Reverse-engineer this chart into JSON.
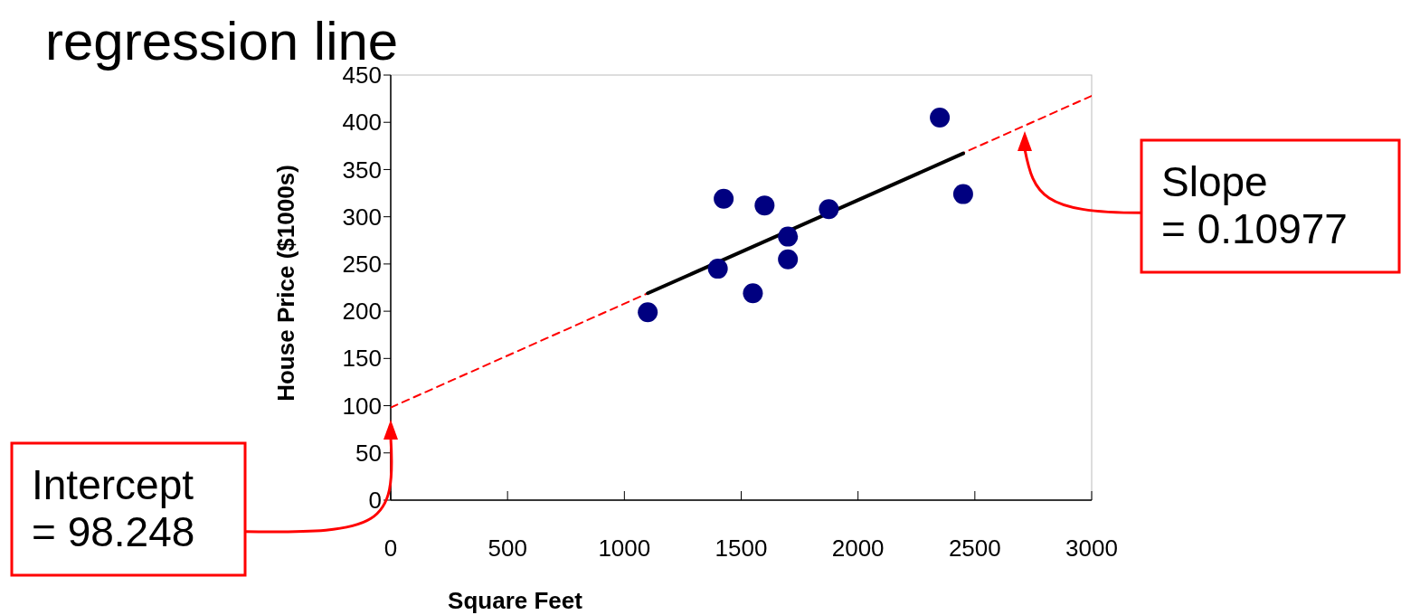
{
  "chart_data": {
    "type": "scatter",
    "title": "regression line",
    "xlabel": "Square Feet",
    "ylabel": "House Price ($1000s)",
    "xlim": [
      0,
      3000
    ],
    "xticks": [
      0,
      500,
      1000,
      1500,
      2000,
      2500,
      3000
    ],
    "ylim": [
      0,
      450
    ],
    "yticks": [
      0,
      50,
      100,
      150,
      200,
      250,
      300,
      350,
      400,
      450
    ],
    "marker": "circle",
    "series": [
      {
        "type": "line",
        "color": "#ff0000",
        "line_style": "dashed",
        "marker": "none",
        "x": [
          0,
          3000
        ],
        "values": [
          98,
          428
        ]
      },
      {
        "type": "line",
        "color": "#000000",
        "line_style": "solid",
        "marker": "none",
        "x": [
          1100,
          2450
        ],
        "values": [
          219,
          367
        ]
      },
      {
        "color": "#000080",
        "x": [
          1400,
          1600,
          1700,
          1875,
          1100,
          1550,
          2350,
          2450,
          1425,
          1700
        ],
        "values": [
          245,
          312,
          279,
          308,
          199,
          219,
          405,
          324,
          319,
          255
        ]
      }
    ],
    "annotations": [
      "Intercept\n= 98.248",
      "Slope\n= 0.10977"
    ]
  }
}
